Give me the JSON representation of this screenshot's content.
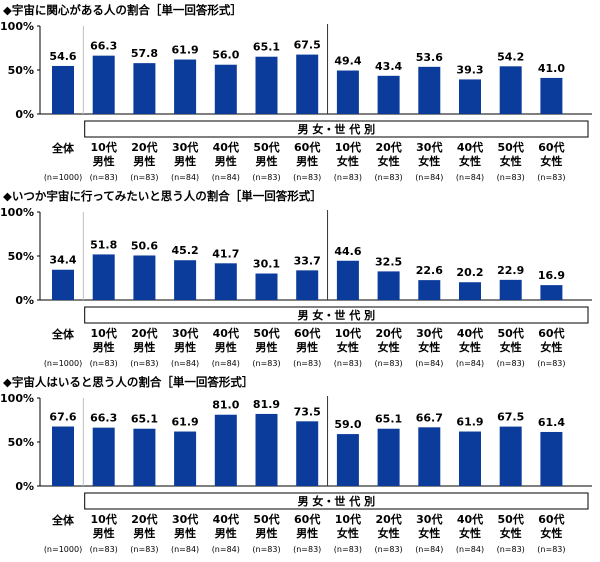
{
  "colors": {
    "bar": "#0b3c9c",
    "text": "#000000",
    "axis": "#000000",
    "divider": "#333333",
    "gridline": "#bfbfbf"
  },
  "chart_data": [
    {
      "type": "bar",
      "title": "◆宇宙に関心がある人の割合［単一回答形式］",
      "ylabel": "",
      "ylim": [
        0,
        100
      ],
      "yticks": [
        "0%",
        "50%",
        "100%"
      ],
      "group_label": "男 女・世 代 別",
      "categories": [
        "全体",
        "10代男性",
        "20代男性",
        "30代男性",
        "40代男性",
        "50代男性",
        "60代男性",
        "10代女性",
        "20代女性",
        "30代女性",
        "40代女性",
        "50代女性",
        "60代女性"
      ],
      "category_lines": [
        [
          "全体"
        ],
        [
          "10代",
          "男性"
        ],
        [
          "20代",
          "男性"
        ],
        [
          "30代",
          "男性"
        ],
        [
          "40代",
          "男性"
        ],
        [
          "50代",
          "男性"
        ],
        [
          "60代",
          "男性"
        ],
        [
          "10代",
          "女性"
        ],
        [
          "20代",
          "女性"
        ],
        [
          "30代",
          "女性"
        ],
        [
          "40代",
          "女性"
        ],
        [
          "50代",
          "女性"
        ],
        [
          "60代",
          "女性"
        ]
      ],
      "n_labels": [
        "(n=1000)",
        "(n=83)",
        "(n=83)",
        "(n=84)",
        "(n=84)",
        "(n=83)",
        "(n=83)",
        "(n=83)",
        "(n=83)",
        "(n=84)",
        "(n=84)",
        "(n=83)",
        "(n=83)"
      ],
      "value_labels": [
        "54.6",
        "66.3",
        "57.8",
        "61.9",
        "56.0",
        "65.1",
        "67.5",
        "49.4",
        "43.4",
        "53.6",
        "39.3",
        "54.2",
        "41.0"
      ],
      "values": [
        54.6,
        66.3,
        57.8,
        61.9,
        56.0,
        65.1,
        67.5,
        49.4,
        43.4,
        53.6,
        39.3,
        54.2,
        41.0
      ]
    },
    {
      "type": "bar",
      "title": "◆いつか宇宙に行ってみたいと思う人の割合［単一回答形式］",
      "ylabel": "",
      "ylim": [
        0,
        100
      ],
      "yticks": [
        "0%",
        "50%",
        "100%"
      ],
      "group_label": "男 女・世 代 別",
      "categories": [
        "全体",
        "10代男性",
        "20代男性",
        "30代男性",
        "40代男性",
        "50代男性",
        "60代男性",
        "10代女性",
        "20代女性",
        "30代女性",
        "40代女性",
        "50代女性",
        "60代女性"
      ],
      "category_lines": [
        [
          "全体"
        ],
        [
          "10代",
          "男性"
        ],
        [
          "20代",
          "男性"
        ],
        [
          "30代",
          "男性"
        ],
        [
          "40代",
          "男性"
        ],
        [
          "50代",
          "男性"
        ],
        [
          "60代",
          "男性"
        ],
        [
          "10代",
          "女性"
        ],
        [
          "20代",
          "女性"
        ],
        [
          "30代",
          "女性"
        ],
        [
          "40代",
          "女性"
        ],
        [
          "50代",
          "女性"
        ],
        [
          "60代",
          "女性"
        ]
      ],
      "n_labels": [
        "(n=1000)",
        "(n=83)",
        "(n=83)",
        "(n=84)",
        "(n=84)",
        "(n=83)",
        "(n=83)",
        "(n=83)",
        "(n=83)",
        "(n=84)",
        "(n=84)",
        "(n=83)",
        "(n=83)"
      ],
      "value_labels": [
        "34.4",
        "51.8",
        "50.6",
        "45.2",
        "41.7",
        "30.1",
        "33.7",
        "44.6",
        "32.5",
        "22.6",
        "20.2",
        "22.9",
        "16.9"
      ],
      "values": [
        34.4,
        51.8,
        50.6,
        45.2,
        41.7,
        30.1,
        33.7,
        44.6,
        32.5,
        22.6,
        20.2,
        22.9,
        16.9
      ]
    },
    {
      "type": "bar",
      "title": "◆宇宙人はいると思う人の割合［単一回答形式］",
      "ylabel": "",
      "ylim": [
        0,
        100
      ],
      "yticks": [
        "0%",
        "50%",
        "100%"
      ],
      "group_label": "男 女・世 代 別",
      "categories": [
        "全体",
        "10代男性",
        "20代男性",
        "30代男性",
        "40代男性",
        "50代男性",
        "60代男性",
        "10代女性",
        "20代女性",
        "30代女性",
        "40代女性",
        "50代女性",
        "60代女性"
      ],
      "category_lines": [
        [
          "全体"
        ],
        [
          "10代",
          "男性"
        ],
        [
          "20代",
          "男性"
        ],
        [
          "30代",
          "男性"
        ],
        [
          "40代",
          "男性"
        ],
        [
          "50代",
          "男性"
        ],
        [
          "60代",
          "男性"
        ],
        [
          "10代",
          "女性"
        ],
        [
          "20代",
          "女性"
        ],
        [
          "30代",
          "女性"
        ],
        [
          "40代",
          "女性"
        ],
        [
          "50代",
          "女性"
        ],
        [
          "60代",
          "女性"
        ]
      ],
      "n_labels": [
        "(n=1000)",
        "(n=83)",
        "(n=83)",
        "(n=84)",
        "(n=84)",
        "(n=83)",
        "(n=83)",
        "(n=83)",
        "(n=83)",
        "(n=84)",
        "(n=84)",
        "(n=83)",
        "(n=83)"
      ],
      "value_labels": [
        "67.6",
        "66.3",
        "65.1",
        "61.9",
        "81.0",
        "81.9",
        "73.5",
        "59.0",
        "65.1",
        "66.7",
        "61.9",
        "67.5",
        "61.4"
      ],
      "values": [
        67.6,
        66.3,
        65.1,
        61.9,
        81.0,
        81.9,
        73.5,
        59.0,
        65.1,
        66.7,
        61.9,
        67.5,
        61.4
      ]
    }
  ]
}
